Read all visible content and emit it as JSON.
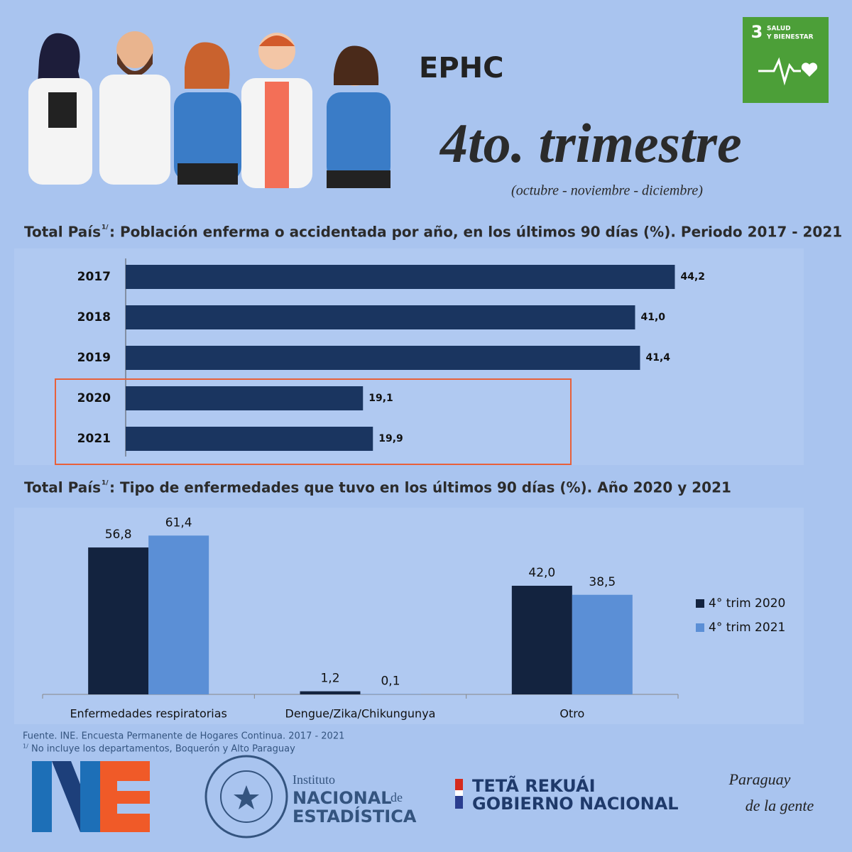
{
  "header": {
    "title": "EPHC",
    "subtitle": "4to. trimestre",
    "months": "(octubre - noviembre - diciembre)",
    "sdg_number": "3",
    "sdg_line1": "SALUD",
    "sdg_line2": "Y BIENESTAR"
  },
  "chart_data": [
    {
      "type": "bar",
      "orientation": "horizontal",
      "title_lead": "Total País",
      "title_sup": "1/",
      "title": ": Población enferma o accidentada por año, en los últimos 90 días (%). Periodo 2017 - 2021",
      "categories": [
        "2017",
        "2018",
        "2019",
        "2020",
        "2021"
      ],
      "values": [
        44.2,
        41.0,
        41.4,
        19.1,
        19.9
      ],
      "value_labels": [
        "44,2",
        "41,0",
        "41,4",
        "19,1",
        "19,9"
      ],
      "color": "#1a3560",
      "xlim": [
        0,
        50
      ],
      "highlight_color": "#e8603a"
    },
    {
      "type": "grouped_bar",
      "title_lead": "Total País",
      "title_sup": "1/",
      "title": ": Tipo de enfermedades que tuvo en los últimos 90 días (%). Año 2020 y 2021",
      "categories": [
        "Enfermedades respiratorias",
        "Dengue/Zika/Chikungunya",
        "Otro"
      ],
      "ylim": [
        0,
        70
      ],
      "series": [
        {
          "name": "4° trim 2020",
          "color": "#13233f",
          "values": [
            56.8,
            1.2,
            42.0
          ],
          "value_labels": [
            "56,8",
            "1,2",
            "42,0"
          ]
        },
        {
          "name": "4° trim 2021",
          "color": "#5b8fd6",
          "values": [
            61.4,
            0.1,
            38.5
          ],
          "value_labels": [
            "61,4",
            "0,1",
            "38,5"
          ]
        }
      ],
      "legend": "right"
    }
  ],
  "footer": {
    "source": "Fuente. INE. Encuesta Permanente de Hogares Continua. 2017 - 2021",
    "note_mark": "1/",
    "note": "No incluye los departamentos, Boquerón y Alto Paraguay",
    "ine_line1": "Instituto",
    "ine_line2": "NACIONAL",
    "ine_line2b": "de",
    "ine_line3": "ESTADÍSTICA",
    "gov_line1": "TETÃ REKUÁI",
    "gov_line2": "GOBIERNO NACIONAL",
    "slogan1": "Paraguay",
    "slogan2": "de la gente"
  }
}
